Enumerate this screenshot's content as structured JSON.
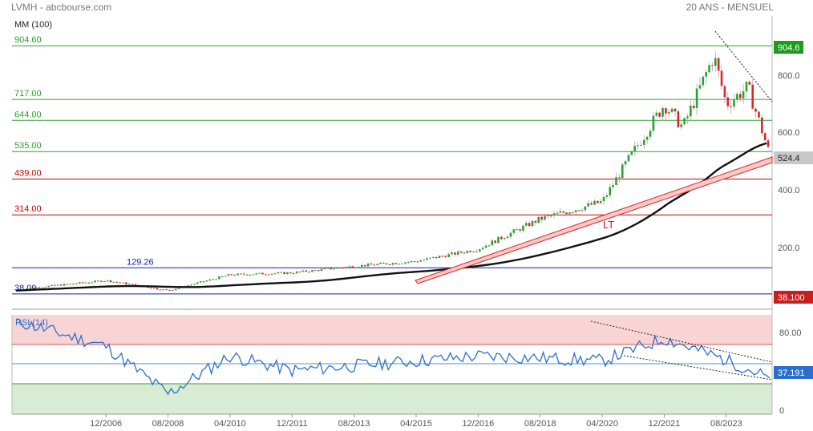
{
  "header": {
    "source": "LVMH - abcbourse.com",
    "period": "20 ANS - MENSUEL",
    "ma_label": "MM (100)"
  },
  "rsi_panel": {
    "label": "RSI (14)",
    "last_value": "37.191",
    "ticks": [
      "80.00",
      "0"
    ],
    "ylim": [
      0,
      100
    ],
    "overbought": 70,
    "oversold": 30
  },
  "price_axis": {
    "ticks": [
      "800.0",
      "600.0",
      "400.0",
      "200.0"
    ],
    "last_price_label": "524.4",
    "high_label": "904.6",
    "low_label": "38.100"
  },
  "x_axis": {
    "ticks": [
      "12/2006",
      "08/2008",
      "04/2010",
      "12/2011",
      "08/2013",
      "04/2015",
      "12/2016",
      "08/2018",
      "04/2020",
      "12/2021",
      "08/2023"
    ]
  },
  "levels": [
    {
      "label": "904.60",
      "value": 904.6,
      "color": "#2ca02c"
    },
    {
      "label": "717.00",
      "value": 717.0,
      "color": "#2ca02c"
    },
    {
      "label": "644.00",
      "value": 644.0,
      "color": "#2ca02c"
    },
    {
      "label": "535.00",
      "value": 535.0,
      "color": "#2ca02c"
    },
    {
      "label": "439.00",
      "value": 439.0,
      "color": "#cc0000"
    },
    {
      "label": "314.00",
      "value": 314.0,
      "color": "#cc0000"
    },
    {
      "label": "129.26",
      "value": 129.26,
      "color": "#1a1aa6"
    },
    {
      "label": "38.09",
      "value": 38.09,
      "color": "#1a1aa6"
    }
  ],
  "annotations": {
    "trendline_label": "LT"
  },
  "colors": {
    "up": "#2ca02c",
    "down": "#d62728",
    "ma": "#111111",
    "rsi": "#2b6fce",
    "rsi_overbought_fill": "#f8d4d4",
    "rsi_oversold_fill": "#d8ecd3",
    "high_badge": "#1e9a1e",
    "low_badge": "#c81e1e",
    "last_badge": "#c8c8c8",
    "rsi_badge": "#2b6fce"
  },
  "chart_data": [
    {
      "type": "candlestick",
      "title": "",
      "x": [
        "2004-07",
        "2006-12",
        "2008-08",
        "2010-04",
        "2011-12",
        "2013-08",
        "2015-04",
        "2016-12",
        "2018-08",
        "2020-04",
        "2020-12",
        "2021-12",
        "2022-06",
        "2023-04",
        "2023-08",
        "2024-03",
        "2024-10"
      ],
      "close": [
        54,
        85,
        50,
        105,
        112,
        135,
        152,
        195,
        300,
        360,
        500,
        700,
        620,
        870,
        700,
        760,
        524.4
      ],
      "ylim": [
        0,
        1000
      ],
      "all_time_high": 904.6,
      "low": 38.1,
      "moving_average": {
        "name": "MM (100)",
        "last": 512
      }
    },
    {
      "type": "line",
      "title": "RSI (14)",
      "x": [
        "2004-07",
        "2006-12",
        "2008-08",
        "2010-04",
        "2011-12",
        "2013-08",
        "2015-04",
        "2016-12",
        "2018-08",
        "2020-04",
        "2021-12",
        "2023-08",
        "2024-10"
      ],
      "values": [
        96,
        70,
        21,
        60,
        45,
        50,
        55,
        60,
        58,
        55,
        78,
        56,
        37.191
      ],
      "ylim": [
        0,
        100
      ]
    }
  ]
}
